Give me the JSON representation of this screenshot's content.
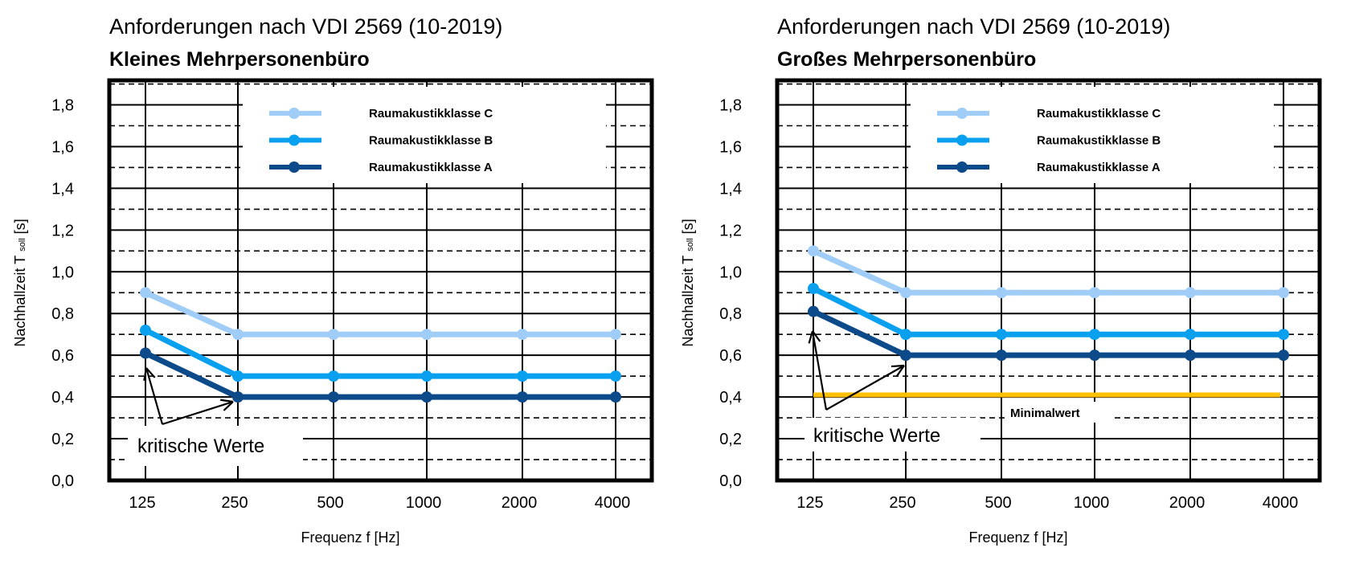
{
  "colors": {
    "class_c": "#9fcdf7",
    "class_b": "#0aa0f0",
    "class_a": "#0c4a8a",
    "minimum": "#ffc000"
  },
  "chart_data": [
    {
      "type": "line",
      "title": "Anforderungen nach VDI 2569 (10-2019)",
      "subtitle": "Kleines Mehrpersonenbüro",
      "xlabel": "Frequenz f  [Hz]",
      "ylabel_main": "Nachhallzeit T",
      "ylabel_sub": "soll",
      "ylabel_unit": "[s]",
      "categories": [
        "125",
        "250",
        "500",
        "1000",
        "2000",
        "4000"
      ],
      "y_ticks": [
        "0,0",
        "0,2",
        "0,4",
        "0,6",
        "0,8",
        "1,0",
        "1,2",
        "1,4",
        "1,6",
        "1,8"
      ],
      "ylim": [
        0,
        1.92
      ],
      "grid": true,
      "legend_placement": "top-center",
      "series": [
        {
          "name": "Raumakustikklasse C",
          "color_key": "class_c",
          "values": [
            0.9,
            0.7,
            0.7,
            0.7,
            0.7,
            0.7
          ]
        },
        {
          "name": "Raumakustikklasse B",
          "color_key": "class_b",
          "values": [
            0.72,
            0.5,
            0.5,
            0.5,
            0.5,
            0.5
          ]
        },
        {
          "name": "Raumakustikklasse A",
          "color_key": "class_a",
          "values": [
            0.61,
            0.4,
            0.4,
            0.4,
            0.4,
            0.4
          ]
        }
      ],
      "annotation": "kritische Werte"
    },
    {
      "type": "line",
      "title": "Anforderungen nach VDI 2569 (10-2019)",
      "subtitle": "Großes Mehrpersonenbüro",
      "xlabel": "Frequenz f  [Hz]",
      "ylabel_main": "Nachhallzeit T",
      "ylabel_sub": "soll",
      "ylabel_unit": "[s]",
      "categories": [
        "125",
        "250",
        "500",
        "1000",
        "2000",
        "4000"
      ],
      "y_ticks": [
        "0,0",
        "0,2",
        "0,4",
        "0,6",
        "0,8",
        "1,0",
        "1,2",
        "1,4",
        "1,6",
        "1,8"
      ],
      "ylim": [
        0,
        1.92
      ],
      "grid": true,
      "legend_placement": "top-center",
      "series": [
        {
          "name": "Raumakustikklasse C",
          "color_key": "class_c",
          "values": [
            1.1,
            0.9,
            0.9,
            0.9,
            0.9,
            0.9
          ]
        },
        {
          "name": "Raumakustikklasse B",
          "color_key": "class_b",
          "values": [
            0.92,
            0.7,
            0.7,
            0.7,
            0.7,
            0.7
          ]
        },
        {
          "name": "Raumakustikklasse A",
          "color_key": "class_a",
          "values": [
            0.81,
            0.6,
            0.6,
            0.6,
            0.6,
            0.6
          ]
        }
      ],
      "minimum_line": {
        "label": "Minimalwert",
        "value": 0.41
      },
      "annotation": "kritische Werte"
    }
  ]
}
